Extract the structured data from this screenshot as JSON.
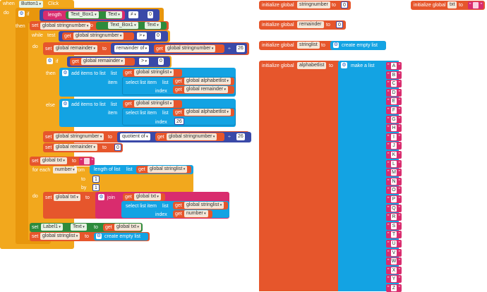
{
  "event": {
    "when": "when",
    "component": "Button1",
    "event": "Click",
    "do": "do"
  },
  "if_block": {
    "if": "if",
    "then": "then",
    "length": "length",
    "textbox": "Text_Box1",
    "prop_text": "Text",
    "op": "≠",
    "zero": "0"
  },
  "set_stringnumber_1": {
    "set": "set",
    "var": "global stringnumber",
    "to": "to",
    "textbox": "Text_Box1",
    "prop_text": "Text"
  },
  "while": {
    "label": "while",
    "test": "test",
    "get": "get",
    "var": "global stringnumber",
    "op": ">",
    "zero": "0",
    "do": "do"
  },
  "set_remainder": {
    "set": "set",
    "var": "global remainder",
    "to": "to",
    "op": "remainder of",
    "get": "get",
    "arg": "global stringnumber",
    "div": "÷",
    "num": "26"
  },
  "inner_if": {
    "if": "if",
    "get": "get",
    "var": "global remainder",
    "op": ">",
    "zero": "0",
    "then": "then",
    "else": "else"
  },
  "add_then": {
    "label": "add items to list",
    "list": "list",
    "get": "get",
    "listvar": "global stringlist",
    "item": "item",
    "select": "select list item",
    "list2": "list",
    "get2": "get",
    "alpha": "global alphabetlist",
    "index": "index",
    "get3": "get",
    "idx": "global remainder"
  },
  "add_else": {
    "label": "add items to list",
    "list": "list",
    "get": "get",
    "listvar": "global stringlist",
    "item": "item",
    "select": "select list item",
    "list2": "list",
    "get2": "get",
    "alpha": "global alphabetlist",
    "index": "index",
    "num": "26"
  },
  "set_stringnumber_2": {
    "set": "set",
    "var": "global stringnumber",
    "to": "to",
    "op": "quotient of",
    "get": "get",
    "arg": "global stringnumber",
    "div": "÷",
    "num": "26"
  },
  "set_remainder_0": {
    "set": "set",
    "var": "global remainder",
    "to": "to",
    "num": "0"
  },
  "set_txt": {
    "set": "set",
    "var": "global txt",
    "to": "to"
  },
  "for_each": {
    "label": "for each",
    "var": "number",
    "from": "from",
    "length": "length of list",
    "list": "list",
    "get": "get",
    "listvar": "global stringlist",
    "to": "to",
    "to_val": "1",
    "by": "by",
    "by_val": "1",
    "do": "do"
  },
  "set_txt_join": {
    "set": "set",
    "var": "global txt",
    "to": "to",
    "join": "join",
    "get": "get",
    "arg": "global txt",
    "select": "select list item",
    "list": "list",
    "get2": "get",
    "listvar": "global stringlist",
    "index": "index",
    "get3": "get",
    "idx": "number"
  },
  "set_label": {
    "set": "set",
    "comp": "Label1",
    "prop": "Text",
    "to": "to",
    "get": "get",
    "var": "global txt"
  },
  "set_stringlist": {
    "set": "set",
    "var": "global stringlist",
    "to": "to",
    "create": "create empty list"
  },
  "globals": {
    "init": "initialize global",
    "to": "to",
    "stringnumber": "stringnumber",
    "stringnumber_val": "0",
    "txt": "txt",
    "remainder": "remainder",
    "remainder_val": "0",
    "stringlist": "stringlist",
    "create_empty": "create empty list",
    "alphabetlist": "alphabetlist",
    "make_list": "make a list"
  },
  "letters": [
    "A",
    "B",
    "C",
    "D",
    "E",
    "F",
    "G",
    "H",
    "I",
    "J",
    "K",
    "L",
    "M",
    "N",
    "O",
    "P",
    "Q",
    "R",
    "S",
    "T",
    "U",
    "V",
    "W",
    "X",
    "Y",
    "Z"
  ],
  "colors": {
    "control": "#f2a81d",
    "variable": "#e6562c",
    "list": "#13a3e3",
    "math": "#3a49a8",
    "text": "#d92c6e",
    "component": "#2e8b3c"
  }
}
